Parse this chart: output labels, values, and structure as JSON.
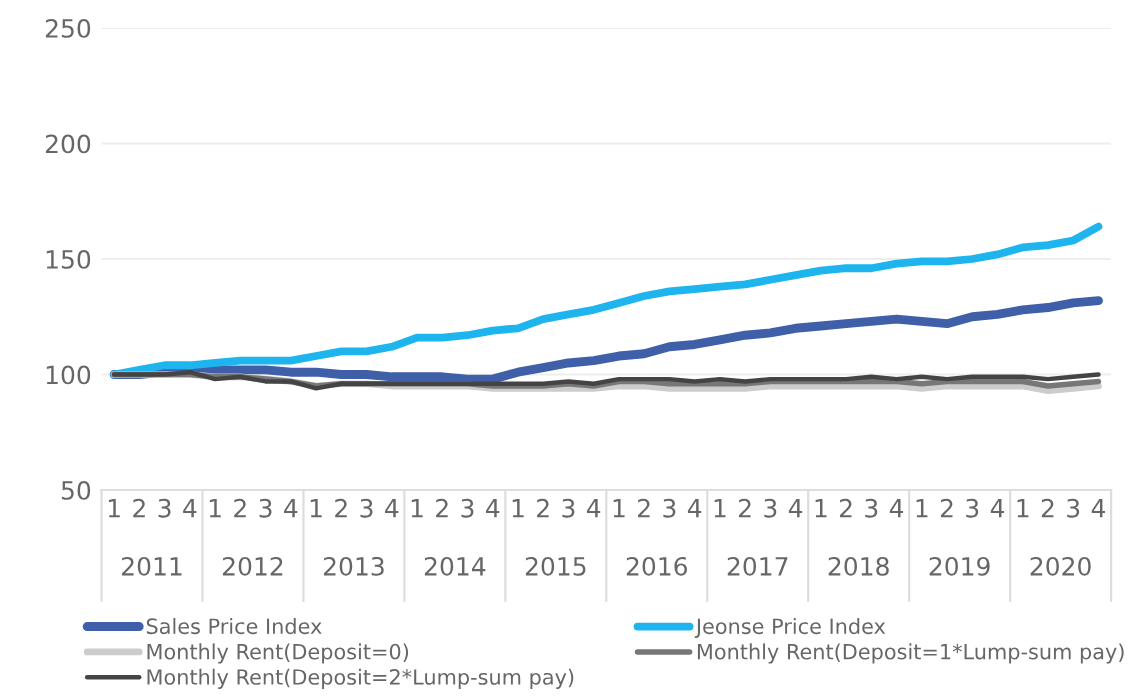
{
  "chart_data": {
    "type": "line",
    "categories": [
      "1",
      "2",
      "3",
      "4",
      "1",
      "2",
      "3",
      "4",
      "1",
      "2",
      "3",
      "4",
      "1",
      "2",
      "3",
      "4",
      "1",
      "2",
      "3",
      "4",
      "1",
      "2",
      "3",
      "4",
      "1",
      "2",
      "3",
      "4",
      "1",
      "2",
      "3",
      "4",
      "1",
      "2",
      "3",
      "4",
      "1",
      "2",
      "3",
      "4"
    ],
    "annotations": [
      "2011",
      "2012",
      "2013",
      "2014",
      "2015",
      "2016",
      "2017",
      "2018",
      "2019",
      "2020"
    ],
    "series": [
      {
        "name": "Sales Price Index",
        "color": "#3f5fa8",
        "values": [
          100,
          100,
          101,
          101,
          102,
          102,
          102,
          101,
          101,
          100,
          100,
          99,
          99,
          99,
          98,
          98,
          101,
          103,
          105,
          106,
          108,
          109,
          112,
          113,
          115,
          117,
          118,
          120,
          121,
          122,
          123,
          124,
          123,
          122,
          125,
          126,
          128,
          129,
          131,
          132
        ]
      },
      {
        "name": "Jeonse Price Index",
        "color": "#1eb4ee",
        "values": [
          100,
          102,
          104,
          104,
          105,
          106,
          106,
          106,
          108,
          110,
          110,
          112,
          116,
          116,
          117,
          119,
          120,
          124,
          126,
          128,
          131,
          134,
          136,
          137,
          138,
          139,
          141,
          143,
          145,
          146,
          146,
          148,
          149,
          149,
          150,
          152,
          155,
          156,
          158,
          164
        ]
      },
      {
        "name": "Monthly Rent(Deposit=0)",
        "color": "#cccccc",
        "values": [
          100,
          100,
          100,
          100,
          99,
          99,
          98,
          97,
          95,
          96,
          96,
          95,
          95,
          95,
          95,
          94,
          94,
          94,
          94,
          94,
          95,
          95,
          94,
          94,
          94,
          94,
          95,
          95,
          95,
          95,
          95,
          95,
          94,
          95,
          95,
          95,
          95,
          93,
          94,
          95
        ]
      },
      {
        "name": "Monthly Rent(Deposit=1*Lump-sum pay)",
        "color": "#777777",
        "values": [
          100,
          100,
          100,
          100,
          99,
          99,
          98,
          97,
          95,
          96,
          96,
          96,
          96,
          96,
          96,
          95,
          95,
          95,
          96,
          95,
          97,
          97,
          96,
          96,
          96,
          96,
          97,
          97,
          97,
          97,
          97,
          97,
          96,
          97,
          97,
          97,
          97,
          95,
          96,
          97
        ]
      },
      {
        "name": "Monthly Rent(Deposit=2*Lump-sum pay)",
        "color": "#444444",
        "values": [
          100,
          100,
          100,
          101,
          98,
          99,
          97,
          97,
          94,
          96,
          96,
          96,
          96,
          96,
          96,
          96,
          96,
          96,
          97,
          96,
          98,
          98,
          98,
          97,
          98,
          97,
          98,
          98,
          98,
          98,
          99,
          98,
          99,
          98,
          99,
          99,
          99,
          98,
          99,
          100
        ]
      }
    ],
    "ylim": [
      50,
      250
    ],
    "yticks": [
      50,
      100,
      150,
      200,
      250
    ],
    "grid": "y",
    "legend": "bottom",
    "line_style": "solid",
    "marker": "none"
  }
}
